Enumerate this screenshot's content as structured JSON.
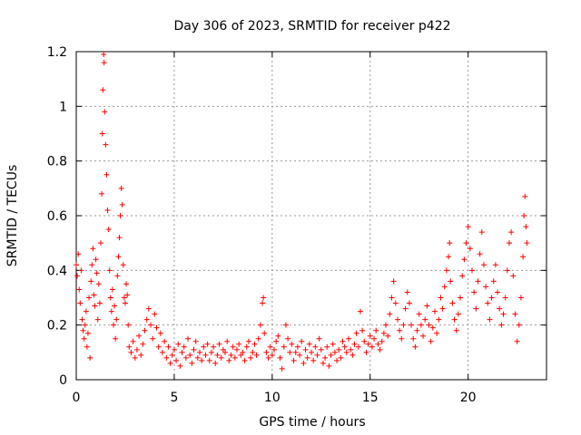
{
  "chart_data": {
    "type": "scatter",
    "title": "Day 306 of 2023, SRMTID for receiver p422",
    "xlabel": "GPS time / hours",
    "ylabel": "SRMTID / TECUs",
    "xlim": [
      0,
      24
    ],
    "ylim": [
      0,
      1.2
    ],
    "xticks": [
      0,
      5,
      10,
      15,
      20
    ],
    "xtick_labels": [
      "0",
      "5",
      "10",
      "15",
      "20"
    ],
    "yticks": [
      0,
      0.2,
      0.4,
      0.6,
      0.8,
      1,
      1.2
    ],
    "ytick_labels": [
      "0",
      "0.2",
      "0.4",
      "0.6",
      "0.8",
      "1",
      "1.2"
    ],
    "grid": true,
    "marker": "+",
    "series": [
      {
        "name": "SRMTID",
        "color": "#ff0000",
        "points": [
          [
            0.0,
            0.42
          ],
          [
            0.05,
            0.38
          ],
          [
            0.1,
            0.46
          ],
          [
            0.15,
            0.33
          ],
          [
            0.2,
            0.28
          ],
          [
            0.25,
            0.4
          ],
          [
            0.3,
            0.22
          ],
          [
            0.35,
            0.18
          ],
          [
            0.4,
            0.15
          ],
          [
            0.45,
            0.2
          ],
          [
            0.5,
            0.25
          ],
          [
            0.55,
            0.12
          ],
          [
            0.6,
            0.17
          ],
          [
            0.65,
            0.3
          ],
          [
            0.7,
            0.08
          ],
          [
            0.75,
            0.36
          ],
          [
            0.8,
            0.42
          ],
          [
            0.85,
            0.48
          ],
          [
            0.9,
            0.31
          ],
          [
            0.95,
            0.27
          ],
          [
            1.0,
            0.44
          ],
          [
            1.05,
            0.39
          ],
          [
            1.1,
            0.22
          ],
          [
            1.15,
            0.35
          ],
          [
            1.2,
            0.28
          ],
          [
            1.25,
            0.5
          ],
          [
            1.3,
            0.68
          ],
          [
            1.33,
            0.9
          ],
          [
            1.36,
            1.06
          ],
          [
            1.4,
            1.19
          ],
          [
            1.42,
            1.16
          ],
          [
            1.45,
            0.98
          ],
          [
            1.5,
            0.86
          ],
          [
            1.55,
            0.75
          ],
          [
            1.6,
            0.62
          ],
          [
            1.65,
            0.55
          ],
          [
            1.7,
            0.4
          ],
          [
            1.75,
            0.3
          ],
          [
            1.8,
            0.25
          ],
          [
            1.85,
            0.33
          ],
          [
            1.9,
            0.2
          ],
          [
            1.95,
            0.27
          ],
          [
            2.0,
            0.15
          ],
          [
            2.05,
            0.22
          ],
          [
            2.1,
            0.38
          ],
          [
            2.15,
            0.45
          ],
          [
            2.2,
            0.52
          ],
          [
            2.25,
            0.6
          ],
          [
            2.3,
            0.7
          ],
          [
            2.35,
            0.64
          ],
          [
            2.4,
            0.42
          ],
          [
            2.45,
            0.3
          ],
          [
            2.5,
            0.28
          ],
          [
            2.55,
            0.35
          ],
          [
            2.6,
            0.31
          ],
          [
            2.65,
            0.2
          ],
          [
            2.7,
            0.12
          ],
          [
            2.8,
            0.1
          ],
          [
            2.9,
            0.14
          ],
          [
            3.0,
            0.08
          ],
          [
            3.1,
            0.11
          ],
          [
            3.2,
            0.16
          ],
          [
            3.3,
            0.09
          ],
          [
            3.4,
            0.13
          ],
          [
            3.5,
            0.18
          ],
          [
            3.6,
            0.22
          ],
          [
            3.7,
            0.26
          ],
          [
            3.8,
            0.2
          ],
          [
            3.9,
            0.15
          ],
          [
            4.0,
            0.24
          ],
          [
            4.1,
            0.19
          ],
          [
            4.2,
            0.12
          ],
          [
            4.3,
            0.17
          ],
          [
            4.4,
            0.1
          ],
          [
            4.5,
            0.14
          ],
          [
            4.6,
            0.08
          ],
          [
            4.7,
            0.12
          ],
          [
            4.8,
            0.06
          ],
          [
            4.9,
            0.09
          ],
          [
            5.0,
            0.11
          ],
          [
            5.1,
            0.07
          ],
          [
            5.2,
            0.13
          ],
          [
            5.3,
            0.05
          ],
          [
            5.4,
            0.1
          ],
          [
            5.5,
            0.12
          ],
          [
            5.6,
            0.08
          ],
          [
            5.7,
            0.15
          ],
          [
            5.8,
            0.09
          ],
          [
            5.9,
            0.06
          ],
          [
            6.0,
            0.11
          ],
          [
            6.1,
            0.14
          ],
          [
            6.2,
            0.08
          ],
          [
            6.3,
            0.1
          ],
          [
            6.4,
            0.07
          ],
          [
            6.5,
            0.12
          ],
          [
            6.6,
            0.09
          ],
          [
            6.7,
            0.13
          ],
          [
            6.8,
            0.07
          ],
          [
            6.9,
            0.1
          ],
          [
            7.0,
            0.12
          ],
          [
            7.1,
            0.06
          ],
          [
            7.2,
            0.09
          ],
          [
            7.3,
            0.13
          ],
          [
            7.4,
            0.08
          ],
          [
            7.5,
            0.11
          ],
          [
            7.6,
            0.1
          ],
          [
            7.7,
            0.14
          ],
          [
            7.8,
            0.07
          ],
          [
            7.9,
            0.09
          ],
          [
            8.0,
            0.12
          ],
          [
            8.1,
            0.08
          ],
          [
            8.2,
            0.11
          ],
          [
            8.3,
            0.13
          ],
          [
            8.4,
            0.09
          ],
          [
            8.5,
            0.1
          ],
          [
            8.6,
            0.07
          ],
          [
            8.7,
            0.12
          ],
          [
            8.8,
            0.14
          ],
          [
            8.9,
            0.08
          ],
          [
            9.0,
            0.1
          ],
          [
            9.1,
            0.13
          ],
          [
            9.2,
            0.09
          ],
          [
            9.3,
            0.15
          ],
          [
            9.4,
            0.2
          ],
          [
            9.5,
            0.28
          ],
          [
            9.55,
            0.3
          ],
          [
            9.6,
            0.17
          ],
          [
            9.7,
            0.1
          ],
          [
            9.8,
            0.08
          ],
          [
            9.9,
            0.12
          ],
          [
            10.0,
            0.09
          ],
          [
            10.1,
            0.11
          ],
          [
            10.2,
            0.14
          ],
          [
            10.3,
            0.16
          ],
          [
            10.4,
            0.08
          ],
          [
            10.5,
            0.04
          ],
          [
            10.6,
            0.12
          ],
          [
            10.7,
            0.2
          ],
          [
            10.8,
            0.15
          ],
          [
            10.9,
            0.1
          ],
          [
            11.0,
            0.13
          ],
          [
            11.1,
            0.07
          ],
          [
            11.2,
            0.1
          ],
          [
            11.3,
            0.12
          ],
          [
            11.4,
            0.09
          ],
          [
            11.5,
            0.14
          ],
          [
            11.6,
            0.06
          ],
          [
            11.7,
            0.11
          ],
          [
            11.8,
            0.08
          ],
          [
            11.9,
            0.13
          ],
          [
            12.0,
            0.1
          ],
          [
            12.1,
            0.07
          ],
          [
            12.2,
            0.12
          ],
          [
            12.3,
            0.09
          ],
          [
            12.4,
            0.15
          ],
          [
            12.5,
            0.11
          ],
          [
            12.6,
            0.06
          ],
          [
            12.7,
            0.08
          ],
          [
            12.8,
            0.12
          ],
          [
            12.9,
            0.05
          ],
          [
            13.0,
            0.09
          ],
          [
            13.1,
            0.13
          ],
          [
            13.2,
            0.1
          ],
          [
            13.3,
            0.07
          ],
          [
            13.4,
            0.11
          ],
          [
            13.5,
            0.08
          ],
          [
            13.6,
            0.14
          ],
          [
            13.7,
            0.12
          ],
          [
            13.8,
            0.1
          ],
          [
            13.9,
            0.15
          ],
          [
            14.0,
            0.11
          ],
          [
            14.1,
            0.09
          ],
          [
            14.2,
            0.13
          ],
          [
            14.3,
            0.17
          ],
          [
            14.4,
            0.12
          ],
          [
            14.5,
            0.25
          ],
          [
            14.6,
            0.18
          ],
          [
            14.7,
            0.14
          ],
          [
            14.8,
            0.1
          ],
          [
            14.9,
            0.13
          ],
          [
            15.0,
            0.16
          ],
          [
            15.1,
            0.12
          ],
          [
            15.2,
            0.15
          ],
          [
            15.3,
            0.18
          ],
          [
            15.4,
            0.13
          ],
          [
            15.5,
            0.11
          ],
          [
            15.6,
            0.14
          ],
          [
            15.7,
            0.17
          ],
          [
            15.8,
            0.2
          ],
          [
            15.9,
            0.16
          ],
          [
            16.0,
            0.24
          ],
          [
            16.1,
            0.3
          ],
          [
            16.2,
            0.36
          ],
          [
            16.3,
            0.28
          ],
          [
            16.4,
            0.22
          ],
          [
            16.5,
            0.18
          ],
          [
            16.6,
            0.15
          ],
          [
            16.7,
            0.2
          ],
          [
            16.8,
            0.26
          ],
          [
            16.9,
            0.32
          ],
          [
            17.0,
            0.28
          ],
          [
            17.1,
            0.2
          ],
          [
            17.2,
            0.15
          ],
          [
            17.3,
            0.12
          ],
          [
            17.4,
            0.18
          ],
          [
            17.5,
            0.24
          ],
          [
            17.6,
            0.2
          ],
          [
            17.7,
            0.16
          ],
          [
            17.8,
            0.22
          ],
          [
            17.9,
            0.27
          ],
          [
            18.0,
            0.2
          ],
          [
            18.1,
            0.14
          ],
          [
            18.2,
            0.19
          ],
          [
            18.3,
            0.25
          ],
          [
            18.4,
            0.17
          ],
          [
            18.5,
            0.22
          ],
          [
            18.6,
            0.3
          ],
          [
            18.7,
            0.26
          ],
          [
            18.8,
            0.34
          ],
          [
            18.9,
            0.4
          ],
          [
            19.0,
            0.45
          ],
          [
            19.05,
            0.5
          ],
          [
            19.1,
            0.36
          ],
          [
            19.2,
            0.28
          ],
          [
            19.3,
            0.22
          ],
          [
            19.4,
            0.18
          ],
          [
            19.5,
            0.24
          ],
          [
            19.6,
            0.3
          ],
          [
            19.7,
            0.38
          ],
          [
            19.8,
            0.44
          ],
          [
            19.9,
            0.5
          ],
          [
            20.0,
            0.56
          ],
          [
            20.1,
            0.48
          ],
          [
            20.2,
            0.4
          ],
          [
            20.3,
            0.32
          ],
          [
            20.4,
            0.26
          ],
          [
            20.5,
            0.36
          ],
          [
            20.6,
            0.46
          ],
          [
            20.7,
            0.54
          ],
          [
            20.8,
            0.42
          ],
          [
            20.9,
            0.34
          ],
          [
            21.0,
            0.28
          ],
          [
            21.1,
            0.22
          ],
          [
            21.2,
            0.3
          ],
          [
            21.3,
            0.36
          ],
          [
            21.4,
            0.42
          ],
          [
            21.5,
            0.32
          ],
          [
            21.6,
            0.26
          ],
          [
            21.7,
            0.2
          ],
          [
            21.8,
            0.24
          ],
          [
            21.9,
            0.3
          ],
          [
            22.0,
            0.4
          ],
          [
            22.1,
            0.5
          ],
          [
            22.2,
            0.54
          ],
          [
            22.3,
            0.38
          ],
          [
            22.4,
            0.24
          ],
          [
            22.5,
            0.14
          ],
          [
            22.6,
            0.2
          ],
          [
            22.7,
            0.3
          ],
          [
            22.8,
            0.45
          ],
          [
            22.85,
            0.6
          ],
          [
            22.9,
            0.67
          ],
          [
            22.95,
            0.56
          ],
          [
            23.0,
            0.5
          ]
        ]
      }
    ]
  }
}
